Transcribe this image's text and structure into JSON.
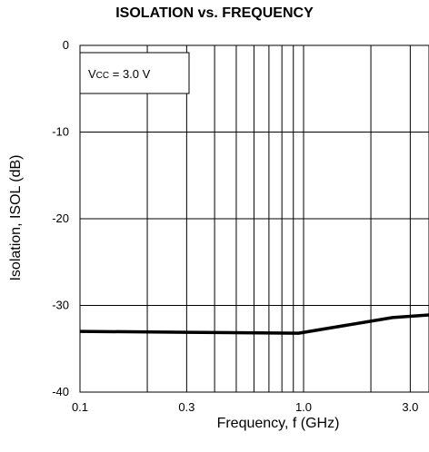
{
  "chart_data": {
    "type": "line",
    "title": "ISOLATION vs. FREQUENCY",
    "xlabel": "Frequency, f (GHz)",
    "ylabel": "Isolation, ISOL (dB)",
    "x_scale": "log",
    "xlim": [
      0.1,
      4.0
    ],
    "ylim": [
      -40,
      0
    ],
    "x_ticks": [
      {
        "value": 0.1,
        "label": "0.1"
      },
      {
        "value": 0.3,
        "label": "0.3"
      },
      {
        "value": 1.0,
        "label": "1.0"
      },
      {
        "value": 3.0,
        "label": "3.0"
      }
    ],
    "y_ticks": [
      {
        "value": 0,
        "label": "0"
      },
      {
        "value": -10,
        "label": "-10"
      },
      {
        "value": -20,
        "label": "-20"
      },
      {
        "value": -30,
        "label": "-30"
      },
      {
        "value": -40,
        "label": "-40"
      }
    ],
    "x_minor_gridlines": [
      0.2,
      0.4,
      0.5,
      0.6,
      0.7,
      0.8,
      0.9,
      2.0
    ],
    "grid": true,
    "annotation": {
      "prefix": "V",
      "subscript": "CC",
      "suffix": " = 3.0 V"
    },
    "series": [
      {
        "x": [
          0.1,
          0.3,
          0.95,
          2.5,
          4.0
        ],
        "y": [
          -33,
          -33.1,
          -33.2,
          -31.4,
          -31.1
        ]
      }
    ]
  }
}
